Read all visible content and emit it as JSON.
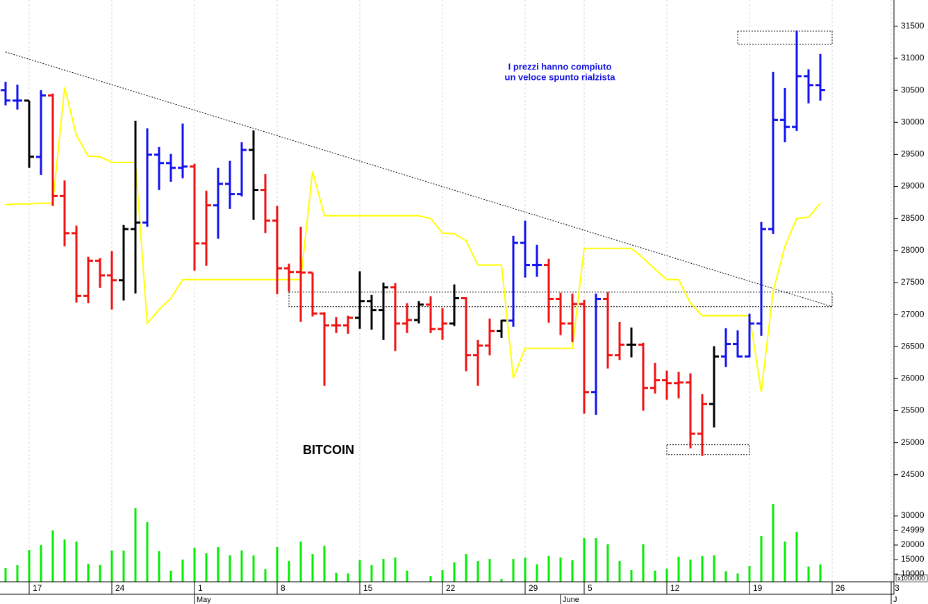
{
  "chart_data": {
    "type": "ohlc",
    "title": "BITCOIN",
    "annotation": [
      "I prezzi hanno compiuto",
      "un veloce spunto rialzista"
    ],
    "categories": [
      null,
      null,
      "17",
      null,
      null,
      null,
      null,
      null,
      null,
      "24",
      null,
      null,
      null,
      null,
      null,
      null,
      "1",
      null,
      null,
      null,
      null,
      null,
      null,
      "8",
      null,
      null,
      null,
      null,
      null,
      null,
      "15",
      null,
      null,
      null,
      null,
      null,
      null,
      "22",
      null,
      null,
      null,
      null,
      null,
      null,
      "29",
      null,
      null,
      null,
      null,
      "5",
      null,
      null,
      null,
      null,
      null,
      null,
      "12",
      null,
      null,
      null,
      null,
      null,
      null,
      "19",
      null,
      null,
      null,
      null,
      null,
      null,
      "26",
      null,
      null,
      null,
      null,
      "3"
    ],
    "months": [
      null,
      null,
      null,
      null,
      null,
      null,
      null,
      null,
      null,
      null,
      null,
      null,
      null,
      null,
      null,
      null,
      "May",
      null,
      null,
      null,
      null,
      null,
      null,
      null,
      null,
      null,
      null,
      null,
      null,
      null,
      null,
      null,
      null,
      null,
      null,
      null,
      null,
      null,
      null,
      null,
      null,
      null,
      null,
      null,
      null,
      null,
      null,
      "June",
      null,
      null,
      null,
      null,
      null,
      null,
      null,
      null,
      null,
      null,
      null,
      null,
      null,
      null,
      null,
      null,
      null,
      null,
      null,
      null,
      null,
      null,
      null,
      null,
      null,
      null,
      null,
      "J"
    ],
    "open": [
      30503,
      30340,
      30340,
      29460,
      30420,
      28850,
      28270,
      27290,
      27840,
      27610,
      27535,
      28335,
      28435,
      29495,
      29365,
      29290,
      29310,
      28110,
      28705,
      29040,
      28880,
      29570,
      28945,
      28465,
      27720,
      27665,
      27655,
      27015,
      26830,
      26830,
      26950,
      27210,
      27070,
      27425,
      26860,
      26915,
      27155,
      26775,
      26860,
      27255,
      26365,
      26515,
      26745,
      26905,
      28120,
      27775,
      27775,
      27245,
      26860,
      27165,
      25790,
      27245,
      26365,
      26530,
      26530,
      25855,
      25975,
      25930,
      25940,
      25140,
      25605,
      26345,
      26540,
      26345,
      26860,
      28335,
      30040,
      29930,
      30720,
      30580,
      null,
      null,
      null,
      null,
      null,
      null
    ],
    "high": [
      30633,
      30590,
      30340,
      30503,
      30450,
      29095,
      28390,
      27903,
      27880,
      27990,
      28400,
      30026,
      29907,
      29615,
      29507,
      29983,
      29355,
      28932,
      29290,
      29398,
      29690,
      29875,
      29192,
      28694,
      27795,
      28369,
      27655,
      27036,
      26960,
      26982,
      27675,
      27306,
      27500,
      27490,
      27177,
      27210,
      27285,
      27100,
      27470,
      27270,
      26603,
      26938,
      26917,
      28228,
      28466,
      28087,
      27870,
      27339,
      27328,
      27231,
      27328,
      27350,
      26884,
      26798,
      26559,
      26245,
      26126,
      26104,
      26083,
      25757,
      26505,
      26787,
      26754,
      27014,
      28445,
      30785,
      30535,
      31435,
      30828,
      31067,
      null,
      null,
      null,
      null,
      null,
      null
    ],
    "low": [
      30265,
      30200,
      29290,
      29180,
      28694,
      28065,
      27188,
      27177,
      27415,
      27080,
      27220,
      27330,
      28369,
      28943,
      29073,
      29127,
      27686,
      27762,
      28185,
      28650,
      28845,
      28477,
      28272,
      27318,
      27360,
      26884,
      26970,
      25888,
      26711,
      26700,
      26776,
      26765,
      26603,
      26430,
      26711,
      26862,
      26711,
      26603,
      26820,
      26115,
      25888,
      26364,
      26635,
      26808,
      27578,
      27589,
      26873,
      26678,
      26570,
      25454,
      25432,
      26158,
      26288,
      26332,
      25498,
      25768,
      25671,
      25692,
      24912,
      24793,
      25238,
      26180,
      26332,
      26332,
      26668,
      28260,
      29690,
      29864,
      30297,
      30340,
      null,
      null,
      null,
      null,
      null,
      null
    ],
    "close": [
      30341,
      30340,
      29463,
      30420,
      28850,
      28270,
      27290,
      27840,
      27610,
      27535,
      28335,
      28435,
      29495,
      29365,
      29290,
      29310,
      28110,
      28705,
      29040,
      28880,
      29570,
      28945,
      28465,
      27720,
      27665,
      27655,
      27015,
      26830,
      26830,
      26950,
      27210,
      27070,
      27425,
      26860,
      26915,
      27155,
      26775,
      26860,
      27255,
      26365,
      26515,
      26745,
      26905,
      28120,
      27775,
      27775,
      27245,
      26860,
      27165,
      25790,
      27245,
      26365,
      26530,
      26530,
      25855,
      25975,
      25930,
      25940,
      25140,
      25605,
      26345,
      26540,
      26345,
      26860,
      28335,
      30040,
      29930,
      30720,
      30580,
      30505,
      null,
      null,
      null,
      null,
      null,
      null
    ],
    "colors": [
      "#1010f0",
      "#1010f0",
      "#000000",
      "#1010f0",
      "#f01010",
      "#f01010",
      "#f01010",
      "#f01010",
      "#f01010",
      "#f01010",
      "#000000",
      "#000000",
      "#1010f0",
      "#1010f0",
      "#1010f0",
      "#1010f0",
      "#f01010",
      "#f01010",
      "#1010f0",
      "#1010f0",
      "#1010f0",
      "#000000",
      "#f01010",
      "#f01010",
      "#f01010",
      "#f01010",
      "#f01010",
      "#f01010",
      "#f01010",
      "#f01010",
      "#000000",
      "#000000",
      "#000000",
      "#f01010",
      "#f01010",
      "#000000",
      "#f01010",
      "#f01010",
      "#000000",
      "#f01010",
      "#f01010",
      "#f01010",
      "#000000",
      "#1010f0",
      "#1010f0",
      "#1010f0",
      "#f01010",
      "#f01010",
      "#f01010",
      "#f01010",
      "#1010f0",
      "#f01010",
      "#f01010",
      "#000000",
      "#f01010",
      "#f01010",
      "#f01010",
      "#f01010",
      "#f01010",
      "#f01010",
      "#000000",
      "#1010f0",
      "#1010f0",
      "#1010f0",
      "#1010f0",
      "#1010f0",
      "#1010f0",
      "#1010f0",
      "#1010f0",
      "#1010f0",
      null,
      null,
      null,
      null,
      null,
      null
    ],
    "ylim": [
      24270,
      31910
    ],
    "yticks": [
      24500,
      25000,
      25500,
      26000,
      26500,
      27000,
      27500,
      28000,
      28500,
      29000,
      29500,
      30000,
      30500,
      31000,
      31500
    ],
    "line": {
      "color": "#ffff00",
      "values": [
        28715,
        28726,
        28726,
        28737,
        28737,
        30547,
        29799,
        29474,
        29463,
        29376,
        29376,
        29376,
        26863,
        27079,
        27253,
        27545,
        27545,
        27545,
        27545,
        27545,
        27545,
        27545,
        27545,
        27545,
        27545,
        27545,
        29236,
        28542,
        28542,
        28542,
        28542,
        28542,
        28542,
        28542,
        28542,
        28542,
        28499,
        28271,
        28260,
        28152,
        27773,
        27773,
        27773,
        26007,
        26473,
        26473,
        26473,
        26473,
        26473,
        28033,
        28033,
        28033,
        28033,
        28033,
        27881,
        27708,
        27545,
        27545,
        27177,
        26982,
        26982,
        26982,
        26982,
        26982,
        25790,
        27361,
        28065,
        28499,
        28520,
        28737,
        null,
        null,
        null,
        null,
        null,
        null
      ]
    },
    "trendline": {
      "at": [
        0,
        70
      ],
      "values": [
        31099,
        27123
      ]
    },
    "boxes": [
      {
        "start": 62,
        "end": 70,
        "low": 31218,
        "high": 31424
      },
      {
        "start": 24,
        "end": 70,
        "low": 27123,
        "high": 27350
      },
      {
        "start": 56,
        "end": 63,
        "low": 24815,
        "high": 24967
      }
    ],
    "volume": {
      "color": "#00ee00",
      "unit": "x1000000",
      "ylim": [
        6900,
        35500
      ],
      "yticks": [
        10000,
        15000,
        20000,
        24999,
        30000
      ],
      "values": [
        12143,
        13100,
        18333,
        20000,
        25000,
        21900,
        21190,
        13570,
        13100,
        18100,
        18100,
        32620,
        27860,
        17860,
        11190,
        15000,
        19050,
        17140,
        19290,
        16430,
        18100,
        16430,
        11670,
        19290,
        14520,
        21190,
        16900,
        19760,
        10480,
        10240,
        14760,
        13100,
        15240,
        15710,
        11190,
        7380,
        9290,
        11430,
        14050,
        16900,
        14520,
        15240,
        8330,
        15240,
        15710,
        13330,
        16190,
        15710,
        14760,
        22380,
        22380,
        20240,
        14520,
        11430,
        20240,
        11190,
        11900,
        15950,
        15000,
        16190,
        16430,
        10950,
        10240,
        12860,
        23100,
        34050,
        21190,
        24520,
        12620,
        13330,
        null,
        null,
        null,
        null,
        null,
        null
      ]
    }
  }
}
